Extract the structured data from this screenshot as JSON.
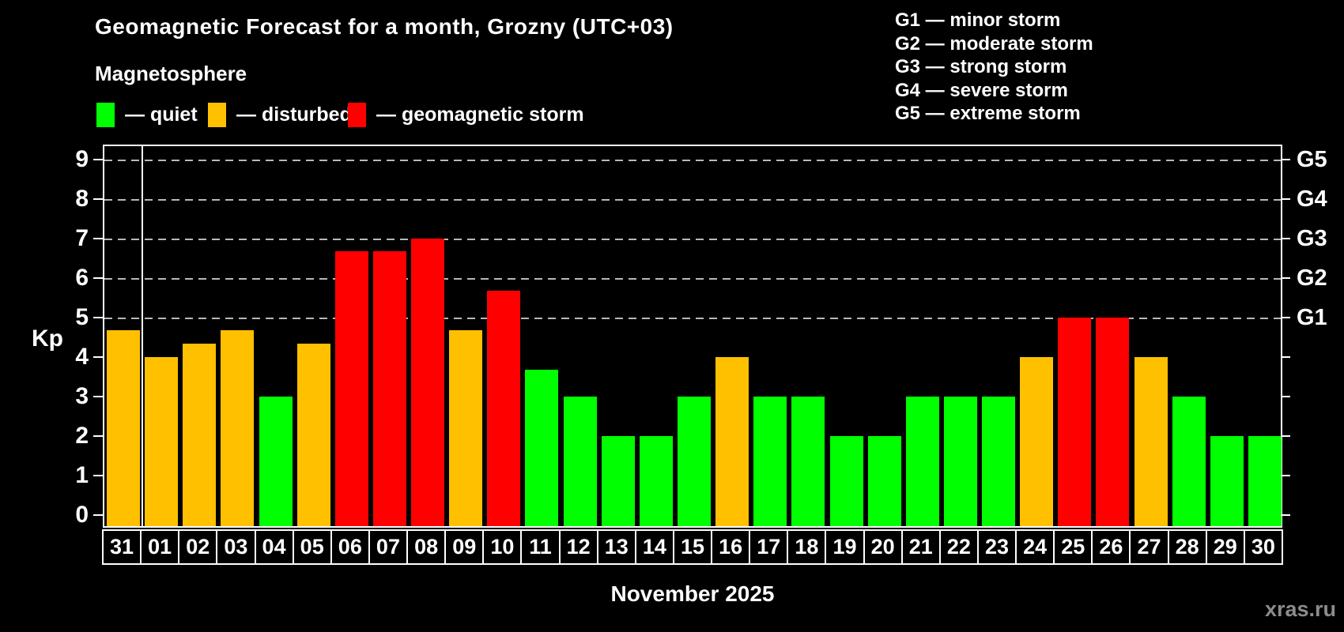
{
  "header": {
    "title": "Geomagnetic Forecast for a month, Grozny (UTC+03)",
    "subtitle": "Magnetosphere"
  },
  "legend": {
    "items": [
      {
        "key": "quiet",
        "label": "— quiet",
        "color": "#00ff00"
      },
      {
        "key": "disturbed",
        "label": "— disturbed",
        "color": "#ffc000"
      },
      {
        "key": "storm",
        "label": "— geomagnetic storm",
        "color": "#ff0000"
      }
    ]
  },
  "g_legend": {
    "lines": [
      "G1 — minor storm",
      "G2 — moderate storm",
      "G3 — strong storm",
      "G4 — severe storm",
      "G5 — extreme storm"
    ]
  },
  "chart_data": {
    "type": "bar",
    "title": "Geomagnetic Forecast for a month, Grozny (UTC+03)",
    "xlabel": "November 2025",
    "ylabel": "Kp",
    "ylim": [
      0,
      9
    ],
    "y_ticks": [
      0,
      1,
      2,
      3,
      4,
      5,
      6,
      7,
      8,
      9
    ],
    "gridlines_at": [
      5,
      6,
      7,
      8,
      9
    ],
    "grid_style": "dashed",
    "legend_position": "top",
    "right_axis_labels": [
      {
        "value": 5,
        "label": "G1"
      },
      {
        "value": 6,
        "label": "G2"
      },
      {
        "value": 7,
        "label": "G3"
      },
      {
        "value": 8,
        "label": "G4"
      },
      {
        "value": 9,
        "label": "G5"
      }
    ],
    "month_separator_after_index": 0,
    "state_colors": {
      "quiet": "#00ff00",
      "disturbed": "#ffc000",
      "storm": "#ff0000"
    },
    "categories": [
      "31",
      "01",
      "02",
      "03",
      "04",
      "05",
      "06",
      "07",
      "08",
      "09",
      "10",
      "11",
      "12",
      "13",
      "14",
      "15",
      "16",
      "17",
      "18",
      "19",
      "20",
      "21",
      "22",
      "23",
      "24",
      "25",
      "26",
      "27",
      "28",
      "29",
      "30"
    ],
    "values": [
      4.67,
      4.0,
      4.33,
      4.67,
      3.0,
      4.33,
      6.67,
      6.67,
      7.0,
      4.67,
      5.67,
      3.67,
      3.0,
      2.0,
      2.0,
      3.0,
      4.0,
      3.0,
      3.0,
      2.0,
      2.0,
      3.0,
      3.0,
      3.0,
      4.0,
      5.0,
      5.0,
      4.0,
      3.0,
      2.0,
      2.0
    ],
    "states": [
      "disturbed",
      "disturbed",
      "disturbed",
      "disturbed",
      "quiet",
      "disturbed",
      "storm",
      "storm",
      "storm",
      "disturbed",
      "storm",
      "quiet",
      "quiet",
      "quiet",
      "quiet",
      "quiet",
      "disturbed",
      "quiet",
      "quiet",
      "quiet",
      "quiet",
      "quiet",
      "quiet",
      "quiet",
      "disturbed",
      "storm",
      "storm",
      "disturbed",
      "quiet",
      "quiet",
      "quiet"
    ]
  },
  "x_axis": {
    "title": "November 2025"
  },
  "y_axis": {
    "title": "Kp"
  },
  "watermark": "xras.ru"
}
